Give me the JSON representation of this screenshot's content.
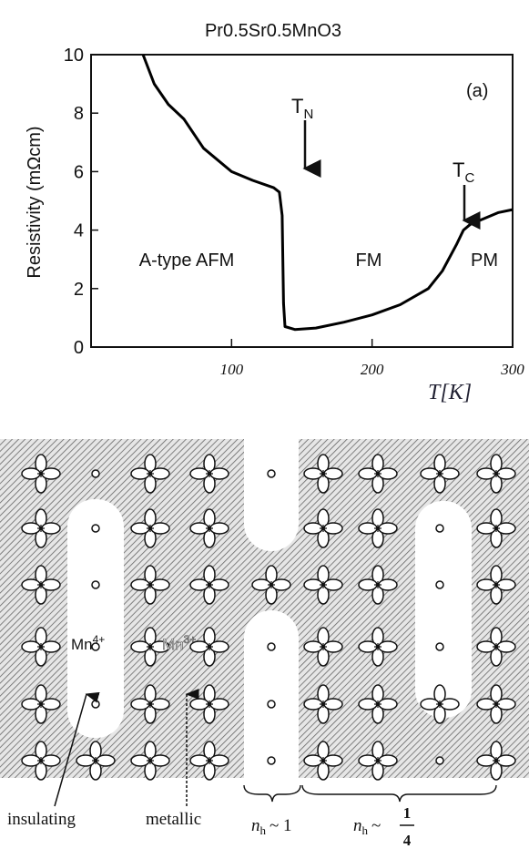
{
  "chart_data": {
    "type": "line",
    "title": "Pr0.5Sr0.5MnO3",
    "y_label": "Resistivity (mΩcm)",
    "x_label": "T[K]",
    "x": [
      37,
      45,
      55,
      66,
      80,
      100,
      115,
      130,
      134,
      136,
      137,
      138,
      145,
      160,
      180,
      200,
      220,
      240,
      250,
      260,
      265,
      270,
      280,
      290,
      300
    ],
    "values": [
      10,
      9.0,
      8.3,
      7.8,
      6.8,
      6.0,
      5.7,
      5.45,
      5.3,
      4.5,
      1.5,
      0.7,
      0.6,
      0.65,
      0.85,
      1.1,
      1.45,
      2.0,
      2.6,
      3.5,
      4.0,
      4.2,
      4.4,
      4.6,
      4.7
    ],
    "color": "#000000",
    "xlim": [
      0,
      300
    ],
    "xticks": [
      100,
      200,
      300
    ],
    "ylim": [
      0,
      10
    ],
    "yticks": [
      0,
      2,
      4,
      6,
      8,
      10
    ],
    "annotations": [
      {
        "text": "(a)"
      },
      {
        "text": "T",
        "sub": "N"
      },
      {
        "text": "T",
        "sub": "C"
      },
      {
        "text": "A-type AFM"
      },
      {
        "text": "FM"
      },
      {
        "text": "PM"
      }
    ]
  },
  "diagram": {
    "mn4": {
      "text": "Mn",
      "sup": "4+"
    },
    "mn3": {
      "text": "Mn",
      "sup": "3+"
    },
    "insulating": "insulating",
    "metallic": "metallic",
    "nh1": {
      "text": "n",
      "sub": "h",
      "rest": "~ 1"
    },
    "nh4": {
      "text": "n",
      "sub": "h",
      "rest": "~",
      "num": "1",
      "den": "4"
    }
  }
}
